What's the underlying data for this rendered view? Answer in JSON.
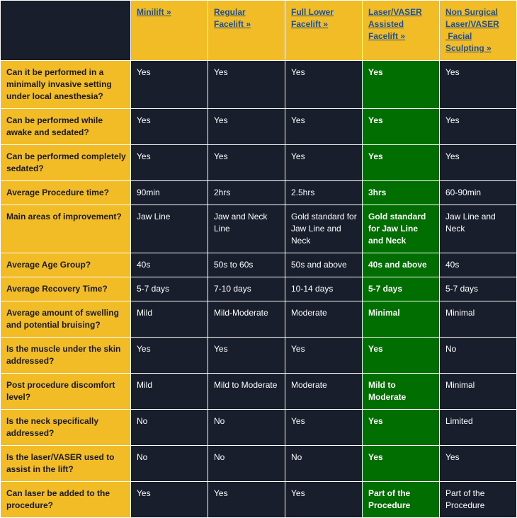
{
  "colors": {
    "question_bg": "#f2bc26",
    "header_bg": "#f2bc26",
    "corner_bg": "#191e2d",
    "cell_bg": "#191e2d",
    "highlight_bg": "#006e00",
    "link_color": "#1a4f9a",
    "cell_text": "#ffffff",
    "question_text": "#1a1a1a"
  },
  "table": {
    "highlight_column": 3,
    "columns": [
      {
        "label": "Minilift »"
      },
      {
        "label": "Regular Facelift »"
      },
      {
        "label": "Full Lower Facelift »"
      },
      {
        "label": "Laser/VASER Assisted Facelift »"
      },
      {
        "label": "Non Surgical Laser/VASER  Facial Sculpting »"
      }
    ],
    "rows": [
      {
        "question": "Can it be performed in a minimally invasive setting under local anesthesia?",
        "values": [
          "Yes",
          "Yes",
          "Yes",
          "Yes",
          "Yes"
        ],
        "height": 68
      },
      {
        "question": "Can be performed while awake and sedated?",
        "values": [
          "Yes",
          "Yes",
          "Yes",
          "Yes",
          "Yes"
        ],
        "height": 51
      },
      {
        "question": "Can be performed completely sedated?",
        "values": [
          "Yes",
          "Yes",
          "Yes",
          "Yes",
          "Yes"
        ],
        "height": 51
      },
      {
        "question": "Average Procedure time?",
        "values": [
          "90min",
          "2hrs",
          "2.5hrs",
          "3hrs",
          "60-90min"
        ],
        "height": 34
      },
      {
        "question": "Main areas of improvement?",
        "values": [
          "Jaw Line",
          "Jaw and Neck Line",
          "Gold standard for Jaw Line and Neck",
          "Gold standard for Jaw Line and Neck",
          "Jaw Line and Neck"
        ],
        "height": 68
      },
      {
        "question": "Average Age Group?",
        "values": [
          "40s",
          "50s to 60s",
          "50s and above",
          "40s and above",
          "40s"
        ],
        "height": 34
      },
      {
        "question": "Average Recovery Time?",
        "values": [
          "5-7 days",
          "7-10 days",
          "10-14 days",
          "5-7 days",
          "5-7 days"
        ],
        "height": 34
      },
      {
        "question": "Average amount of swelling and potential bruising?",
        "values": [
          "Mild",
          "Mild-Moderate",
          "Moderate",
          "Minimal",
          "Minimal"
        ],
        "height": 51
      },
      {
        "question": "Is the muscle under the skin addressed?",
        "values": [
          "Yes",
          "Yes",
          "Yes",
          "Yes",
          "No"
        ],
        "height": 51
      },
      {
        "question": "Post procedure discomfort level?",
        "values": [
          "Mild",
          "Mild to Moderate",
          "Moderate",
          "Mild to Moderate",
          "Minimal"
        ],
        "height": 51
      },
      {
        "question": "Is the neck specifically addressed?",
        "values": [
          "No",
          "No",
          "Yes",
          "Yes",
          "Limited"
        ],
        "height": 51
      },
      {
        "question": "Is the laser/VASER used to assist in the lift?",
        "values": [
          "No",
          "No",
          "No",
          "Yes",
          "Yes"
        ],
        "height": 51
      },
      {
        "question": "Can laser be added to the procedure?",
        "values": [
          "Yes",
          "Yes",
          "Yes",
          "Part of the Procedure",
          "Part of the Procedure"
        ],
        "height": 51
      }
    ]
  }
}
